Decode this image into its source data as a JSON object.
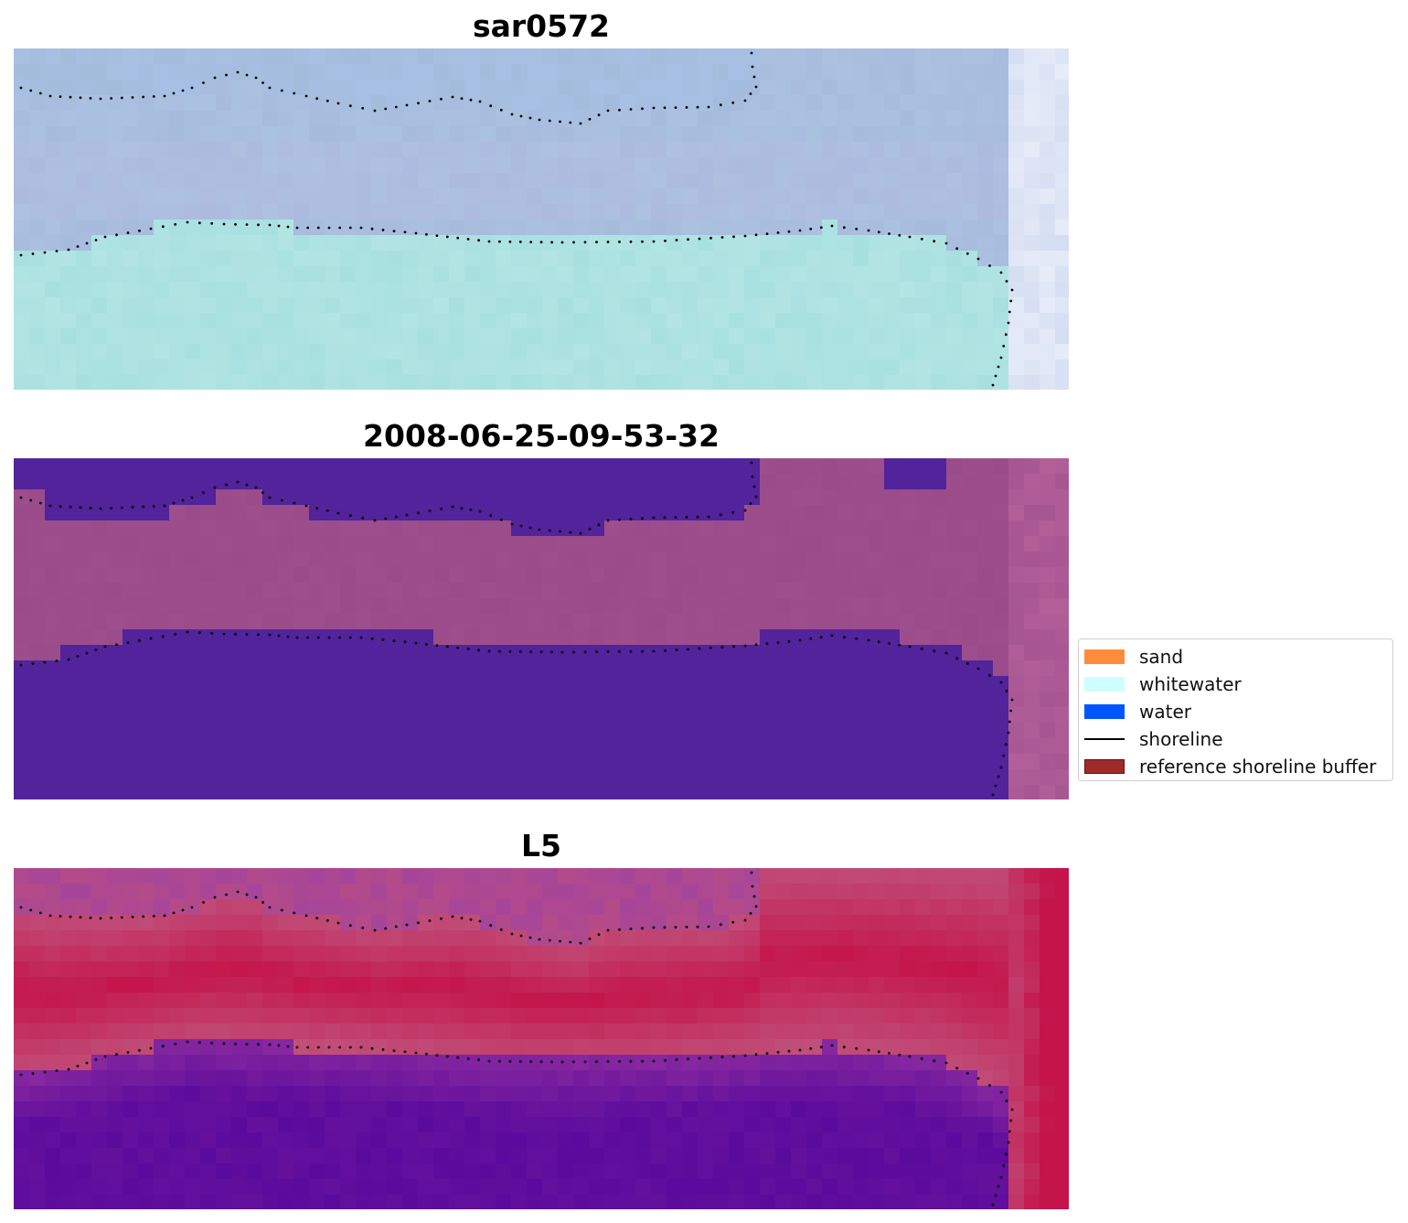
{
  "panels": [
    {
      "title": "sar0572",
      "kind": "rgb"
    },
    {
      "title": "2008-06-25-09-53-32",
      "kind": "classification"
    },
    {
      "title": "L5",
      "kind": "index"
    }
  ],
  "legend": {
    "items": [
      {
        "label": "sand",
        "color": "#ff8c3a",
        "type": "patch"
      },
      {
        "label": "whitewater",
        "color": "#ccfffe",
        "type": "patch"
      },
      {
        "label": "water",
        "color": "#0055ff",
        "type": "patch"
      },
      {
        "label": "shoreline",
        "color": "#000000",
        "type": "line"
      },
      {
        "label": "reference shoreline buffer",
        "color": "#9e2a2a",
        "type": "patch"
      }
    ]
  },
  "colors": {
    "rgb_sky": "#a4bcdc",
    "rgb_water": "#a8e0e0",
    "class_buffer": "#9a4c8a",
    "class_water": "#52239a",
    "index_land": "#c4144a",
    "index_water": "#5a0a9c",
    "index_edge": "#c0507a"
  }
}
